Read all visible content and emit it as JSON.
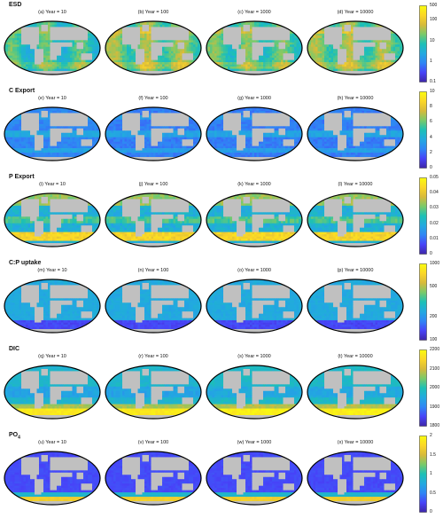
{
  "chart_data": {
    "type": "heatmap",
    "projection": "mollweide",
    "colormap": [
      "#3e26a8",
      "#4743f8",
      "#2f85f5",
      "#22a9e0",
      "#1cc0b6",
      "#79ca6a",
      "#d7ba3a",
      "#fbd627",
      "#f9fb0e"
    ],
    "land_color": "#c0c0c0",
    "rows": [
      {
        "title": "ESD",
        "scale": "log",
        "clim": [
          0.1,
          500
        ],
        "ticks": [
          "500",
          "100",
          "10",
          "1",
          "0.1"
        ],
        "tick_values": [
          500,
          100,
          10,
          1,
          0.1
        ],
        "panels": [
          "(a) Year = 10",
          "(b) Year = 100",
          "(c) Year = 1000",
          "(d) Year = 10000"
        ],
        "field_levels": [
          0.45,
          0.55,
          0.5,
          0.55
        ]
      },
      {
        "title": "C Export",
        "scale": "linear",
        "clim": [
          0,
          10
        ],
        "ticks": [
          "10",
          "8",
          "6",
          "4",
          "2",
          "0"
        ],
        "tick_values": [
          10,
          8,
          6,
          4,
          2,
          0
        ],
        "panels": [
          "(e) Year = 10",
          "(f) Year = 100",
          "(g) Year = 1000",
          "(h) Year = 10000"
        ],
        "field_levels": [
          0.22,
          0.2,
          0.2,
          0.2
        ]
      },
      {
        "title": "P Export",
        "scale": "linear",
        "clim": [
          0,
          0.05
        ],
        "ticks": [
          "0.05",
          "0.04",
          "0.03",
          "0.02",
          "0.01",
          "0"
        ],
        "tick_values": [
          0.05,
          0.04,
          0.03,
          0.02,
          0.01,
          0
        ],
        "panels": [
          "(i) Year = 10",
          "(j) Year = 100",
          "(k) Year = 1000",
          "(l) Year = 10000"
        ],
        "field_levels": [
          0.35,
          0.35,
          0.35,
          0.35
        ]
      },
      {
        "title": "C:P uptake",
        "scale": "log",
        "clim": [
          100,
          1000
        ],
        "ticks": [
          "1000",
          "500",
          "200",
          "100"
        ],
        "tick_values": [
          1000,
          500,
          200,
          100
        ],
        "panels": [
          "(m) Year = 10",
          "(n) Year = 100",
          "(o) Year = 1000",
          "(p) Year = 10000"
        ],
        "field_levels": [
          0.3,
          0.3,
          0.3,
          0.3
        ]
      },
      {
        "title": "DIC",
        "scale": "linear",
        "clim": [
          1800,
          2200
        ],
        "ticks": [
          "2200",
          "2100",
          "2000",
          "1900",
          "1800"
        ],
        "tick_values": [
          2200,
          2100,
          2000,
          1900,
          1800
        ],
        "panels": [
          "(q) Year = 10",
          "(r) Year = 100",
          "(s) Year = 1000",
          "(t) Year = 10000"
        ],
        "field_levels": [
          0.4,
          0.4,
          0.42,
          0.42
        ]
      },
      {
        "title": "PO",
        "title_sub": "4",
        "scale": "linear",
        "clim": [
          0,
          2
        ],
        "ticks": [
          "2",
          "1.5",
          "1",
          "0.5",
          "0"
        ],
        "tick_values": [
          2,
          1.5,
          1,
          0.5,
          0
        ],
        "panels": [
          "(u) Year = 10",
          "(v) Year = 100",
          "(w) Year = 1000",
          "(x) Year = 10000"
        ],
        "field_levels": [
          0.12,
          0.12,
          0.12,
          0.12
        ]
      }
    ]
  }
}
